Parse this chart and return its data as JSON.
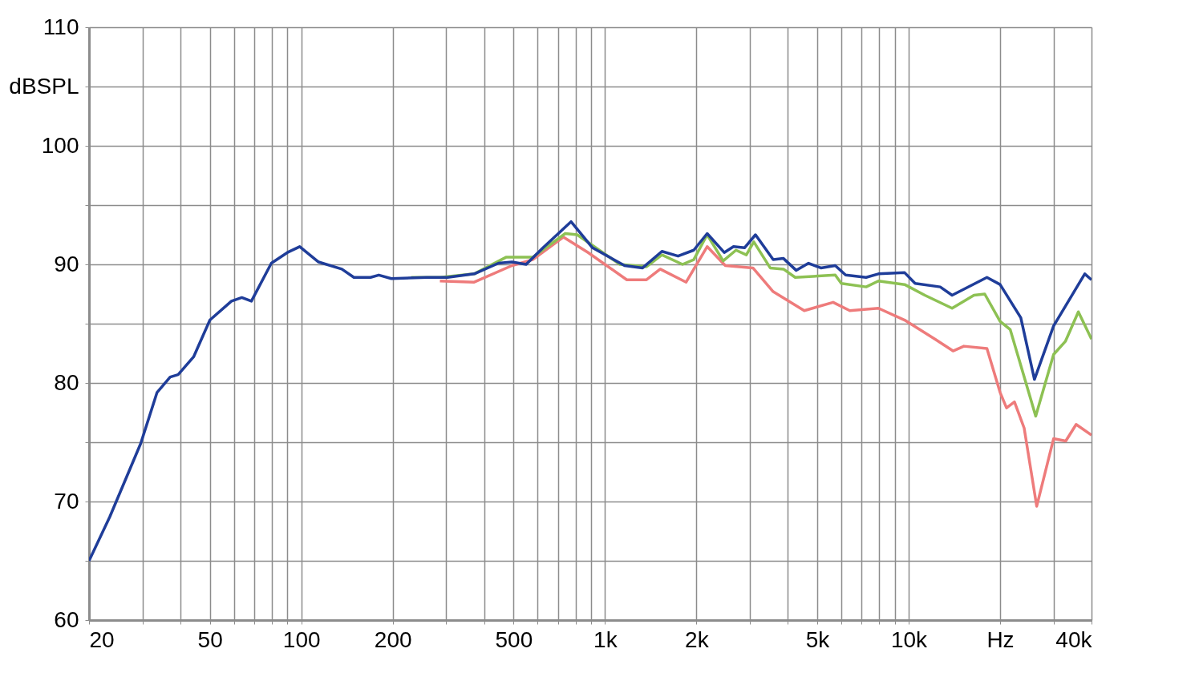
{
  "chart_data": {
    "type": "line",
    "log": "x",
    "grid": true,
    "xlim": [
      20,
      40000
    ],
    "ylim": [
      60,
      110
    ],
    "xticks": [
      20,
      {
        "value": 30,
        "label": null
      },
      {
        "value": 40,
        "label": null
      },
      50,
      {
        "value": 60,
        "label": null
      },
      {
        "value": 70,
        "label": null
      },
      {
        "value": 80,
        "label": null
      },
      {
        "value": 90,
        "label": null
      },
      100,
      200,
      {
        "value": 300,
        "label": null
      },
      {
        "value": 400,
        "label": null
      },
      500,
      {
        "value": 600,
        "label": null
      },
      {
        "value": 700,
        "label": null
      },
      {
        "value": 800,
        "label": null
      },
      {
        "value": 900,
        "label": null
      },
      {
        "value": 1000,
        "label": "1k"
      },
      {
        "value": 2000,
        "label": "2k"
      },
      {
        "value": 3000,
        "label": null
      },
      {
        "value": 4000,
        "label": null
      },
      {
        "value": 5000,
        "label": "5k"
      },
      {
        "value": 6000,
        "label": null
      },
      {
        "value": 7000,
        "label": null
      },
      {
        "value": 8000,
        "label": null
      },
      {
        "value": 9000,
        "label": null
      },
      {
        "value": 10000,
        "label": "10k"
      },
      {
        "value": 20000,
        "label": "Hz"
      },
      {
        "value": 30000,
        "label": null
      },
      {
        "value": 40000,
        "label": "40k"
      }
    ],
    "yticks": [
      60,
      {
        "value": 65,
        "label": null
      },
      70,
      {
        "value": 75,
        "label": null
      },
      80,
      {
        "value": 85,
        "label": null
      },
      90,
      {
        "value": 95,
        "label": null
      },
      100,
      {
        "value": 105,
        "label": "dBSPL"
      },
      110
    ],
    "series": [
      {
        "color": "#1f3d99",
        "x": [
          20,
          23.4,
          29.6,
          33.5,
          37,
          39.3,
          44.2,
          50,
          58.9,
          63.7,
          68.5,
          79.7,
          90,
          98.8,
          114,
          136,
          149,
          169,
          180,
          198,
          259,
          303,
          371,
          446,
          494,
          550,
          625,
          773,
          910,
          1160,
          1330,
          1540,
          1740,
          1960,
          2170,
          2470,
          2650,
          2880,
          3130,
          3580,
          3870,
          4260,
          4680,
          5140,
          5730,
          6200,
          7240,
          7950,
          9700,
          10500,
          12700,
          13900,
          18100,
          20000,
          23400,
          25950,
          30000,
          38000,
          40000
        ],
        "values": [
          65.0,
          68.7,
          74.9,
          79.2,
          80.5,
          80.7,
          82.2,
          85.3,
          86.9,
          87.2,
          86.9,
          90.1,
          91.0,
          91.5,
          90.2,
          89.6,
          88.9,
          88.9,
          89.1,
          88.8,
          88.9,
          88.9,
          89.2,
          90.1,
          90.2,
          90.0,
          91.4,
          93.6,
          91.4,
          89.9,
          89.7,
          91.1,
          90.7,
          91.2,
          92.6,
          91.0,
          91.5,
          91.4,
          92.5,
          90.4,
          90.5,
          89.5,
          90.1,
          89.7,
          89.9,
          89.1,
          88.9,
          89.2,
          89.3,
          88.4,
          88.1,
          87.4,
          88.9,
          88.3,
          85.5,
          80.3,
          84.8,
          89.2,
          88.7
        ]
      },
      {
        "color": "#8dc153",
        "x": [
          230,
          286,
          371,
          472,
          578,
          740,
          810,
          1120,
          1370,
          1540,
          1800,
          1960,
          2170,
          2450,
          2700,
          2920,
          3090,
          3500,
          3870,
          4230,
          5730,
          6000,
          7240,
          7950,
          9700,
          11300,
          13900,
          16400,
          17800,
          20000,
          21600,
          26200,
          30000,
          32800,
          36200,
          40000
        ],
        "values": [
          88.9,
          88.9,
          89.2,
          90.6,
          90.6,
          92.6,
          92.5,
          90.0,
          89.8,
          90.8,
          90.0,
          90.4,
          92.5,
          90.3,
          91.2,
          90.8,
          91.9,
          89.7,
          89.6,
          88.9,
          89.1,
          88.4,
          88.1,
          88.6,
          88.3,
          87.4,
          86.3,
          87.4,
          87.5,
          85.2,
          84.5,
          77.2,
          82.4,
          83.5,
          86.0,
          83.7
        ]
      },
      {
        "color": "#ee7b7b",
        "x": [
          286,
          371,
          494,
          578,
          730,
          880,
          1180,
          1370,
          1520,
          1850,
          2170,
          2490,
          3070,
          3580,
          4530,
          5640,
          6400,
          7950,
          9700,
          12200,
          14000,
          15200,
          18100,
          20000,
          21000,
          22300,
          24000,
          26400,
          30000,
          32900,
          35600,
          40000
        ],
        "values": [
          88.6,
          88.5,
          89.9,
          90.4,
          92.3,
          91.0,
          88.7,
          88.7,
          89.6,
          88.5,
          91.5,
          89.9,
          89.7,
          87.7,
          86.1,
          86.8,
          86.1,
          86.3,
          85.3,
          83.7,
          82.7,
          83.1,
          82.9,
          79.2,
          77.9,
          78.4,
          76.2,
          69.6,
          75.3,
          75.1,
          76.5,
          75.6
        ]
      }
    ]
  }
}
